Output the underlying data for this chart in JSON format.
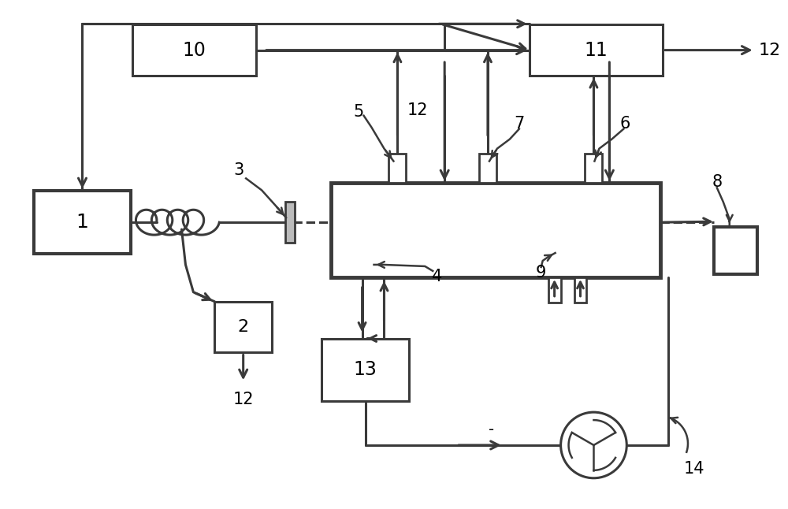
{
  "bg_color": "#ffffff",
  "line_color": "#3a3a3a",
  "figsize": [
    10.0,
    6.46
  ],
  "dpi": 100
}
